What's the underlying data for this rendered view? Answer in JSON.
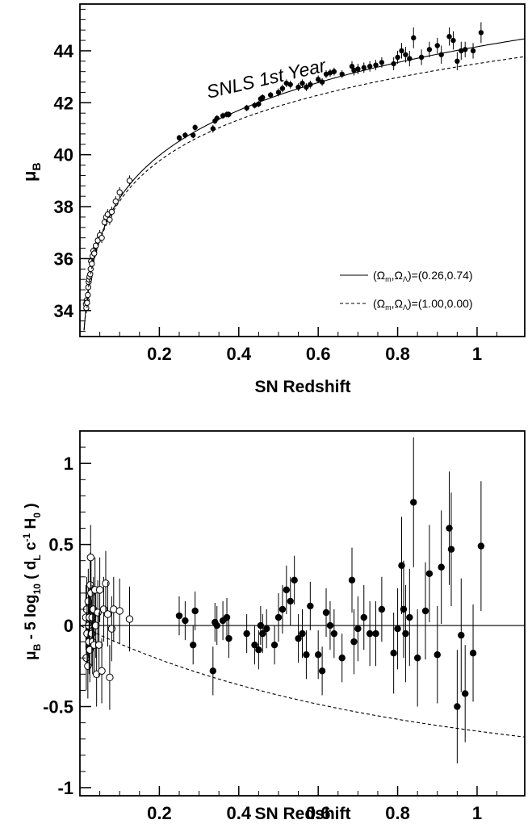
{
  "chart_data": [
    {
      "type": "scatter",
      "annotation": "SNLS 1st Year",
      "xlabel": "SN Redshift",
      "ylabel_main": "μ",
      "ylabel_sub": "B",
      "xlim": [
        0,
        1.12
      ],
      "ylim": [
        33,
        45.8
      ],
      "xticks": [
        0.2,
        0.4,
        0.6,
        0.8,
        1
      ],
      "xtick_labels": [
        "0.2",
        "0.4",
        "0.6",
        "0.8",
        "1"
      ],
      "yticks": [
        34,
        36,
        38,
        40,
        42,
        44
      ],
      "ytick_labels": [
        "34",
        "36",
        "38",
        "40",
        "42",
        "44"
      ],
      "legend": [
        {
          "text": "(Ωm,ΩΛ)=(0.26,0.74)",
          "style": "solid"
        },
        {
          "text": "(Ωm,ΩΛ)=(1.00,0.00)",
          "style": "dashed"
        }
      ],
      "series": [
        {
          "name": "(Ωm,ΩΛ)=(0.26,0.74)",
          "kind": "model",
          "om": 0.26,
          "ol": 0.74,
          "style": "solid"
        },
        {
          "name": "(Ωm,ΩΛ)=(1.00,0.00)",
          "kind": "model",
          "om": 1.0,
          "ol": 0.0,
          "style": "dashed"
        },
        {
          "kind": "low-z",
          "marker": "open",
          "points": [
            [
              0.015,
              34.25,
              0.2
            ],
            [
              0.016,
              34.1,
              0.2
            ],
            [
              0.017,
              34.4,
              0.2
            ],
            [
              0.018,
              34.3,
              0.2
            ],
            [
              0.02,
              34.6,
              0.2
            ],
            [
              0.021,
              34.9,
              0.2
            ],
            [
              0.022,
              35.1,
              0.2
            ],
            [
              0.023,
              35.2,
              0.2
            ],
            [
              0.024,
              35.3,
              0.2
            ],
            [
              0.026,
              35.4,
              0.2
            ],
            [
              0.027,
              35.6,
              0.2
            ],
            [
              0.028,
              35.9,
              0.2
            ],
            [
              0.03,
              35.8,
              0.2
            ],
            [
              0.032,
              36.1,
              0.2
            ],
            [
              0.034,
              36.3,
              0.2
            ],
            [
              0.036,
              36.2,
              0.2
            ],
            [
              0.04,
              36.5,
              0.2
            ],
            [
              0.045,
              36.7,
              0.2
            ],
            [
              0.05,
              36.9,
              0.2
            ],
            [
              0.055,
              36.8,
              0.2
            ],
            [
              0.062,
              37.4,
              0.2
            ],
            [
              0.066,
              37.6,
              0.2
            ],
            [
              0.07,
              37.7,
              0.2
            ],
            [
              0.075,
              37.5,
              0.2
            ],
            [
              0.08,
              37.8,
              0.2
            ],
            [
              0.09,
              38.2,
              0.2
            ],
            [
              0.1,
              38.55,
              0.2
            ],
            [
              0.125,
              39.0,
              0.2
            ]
          ]
        },
        {
          "kind": "SNLS",
          "marker": "filled",
          "points": [
            [
              0.25,
              40.65,
              0.12
            ],
            [
              0.265,
              40.75,
              0.12
            ],
            [
              0.285,
              40.75,
              0.12
            ],
            [
              0.29,
              41.05,
              0.12
            ],
            [
              0.335,
              41.0,
              0.15
            ],
            [
              0.34,
              41.3,
              0.12
            ],
            [
              0.345,
              41.4,
              0.12
            ],
            [
              0.36,
              41.5,
              0.12
            ],
            [
              0.37,
              41.55,
              0.12
            ],
            [
              0.375,
              41.55,
              0.12
            ],
            [
              0.42,
              41.8,
              0.12
            ],
            [
              0.44,
              41.9,
              0.12
            ],
            [
              0.45,
              41.95,
              0.12
            ],
            [
              0.455,
              42.15,
              0.12
            ],
            [
              0.46,
              42.2,
              0.12
            ],
            [
              0.48,
              42.3,
              0.12
            ],
            [
              0.5,
              42.4,
              0.15
            ],
            [
              0.51,
              42.55,
              0.15
            ],
            [
              0.52,
              42.75,
              0.15
            ],
            [
              0.53,
              42.7,
              0.15
            ],
            [
              0.55,
              42.6,
              0.15
            ],
            [
              0.56,
              42.75,
              0.15
            ],
            [
              0.57,
              42.6,
              0.15
            ],
            [
              0.58,
              42.7,
              0.15
            ],
            [
              0.6,
              42.9,
              0.15
            ],
            [
              0.61,
              42.8,
              0.15
            ],
            [
              0.62,
              43.1,
              0.15
            ],
            [
              0.63,
              43.15,
              0.15
            ],
            [
              0.64,
              43.2,
              0.15
            ],
            [
              0.66,
              43.1,
              0.15
            ],
            [
              0.685,
              43.4,
              0.2
            ],
            [
              0.69,
              43.25,
              0.2
            ],
            [
              0.7,
              43.3,
              0.2
            ],
            [
              0.715,
              43.35,
              0.2
            ],
            [
              0.73,
              43.4,
              0.2
            ],
            [
              0.745,
              43.45,
              0.2
            ],
            [
              0.76,
              43.55,
              0.2
            ],
            [
              0.79,
              43.5,
              0.25
            ],
            [
              0.8,
              43.75,
              0.25
            ],
            [
              0.81,
              44.0,
              0.3
            ],
            [
              0.82,
              43.85,
              0.3
            ],
            [
              0.83,
              43.7,
              0.3
            ],
            [
              0.84,
              44.5,
              0.4
            ],
            [
              0.86,
              43.75,
              0.3
            ],
            [
              0.88,
              44.05,
              0.3
            ],
            [
              0.9,
              44.2,
              0.3
            ],
            [
              0.91,
              43.85,
              0.35
            ],
            [
              0.93,
              44.55,
              0.35
            ],
            [
              0.94,
              44.4,
              0.35
            ],
            [
              0.95,
              43.6,
              0.35
            ],
            [
              0.96,
              44.0,
              0.35
            ],
            [
              0.97,
              44.05,
              0.3
            ],
            [
              0.99,
              44.0,
              0.3
            ],
            [
              1.01,
              44.7,
              0.4
            ]
          ]
        }
      ]
    },
    {
      "type": "scatter",
      "xlabel": "SN Redshift",
      "ylabel": "μB - 5 log10 ( dL c-1 H0 )",
      "ylabel_parts": [
        "μ",
        "B",
        " - 5 log",
        "10",
        " ( d",
        "L",
        " c",
        "-1",
        " H",
        "0",
        " )"
      ],
      "xlim": [
        0,
        1.12
      ],
      "ylim": [
        -1.05,
        1.2
      ],
      "xticks": [
        0.2,
        0.4,
        0.6,
        0.8,
        1
      ],
      "xtick_labels": [
        "0.2",
        "0.4",
        "0.6",
        "0.8",
        "1"
      ],
      "yticks": [
        -1,
        -0.5,
        0,
        0.5,
        1
      ],
      "ytick_labels": [
        "-1",
        "-0.5",
        "0",
        "0.5",
        "1"
      ],
      "series": [
        {
          "kind": "model-residual",
          "style": "solid",
          "om": 0.26,
          "ol": 0.74
        },
        {
          "kind": "model-residual",
          "style": "dashed",
          "om": 1.0,
          "ol": 0.0
        },
        {
          "kind": "low-z",
          "marker": "open",
          "points": [
            [
              0.015,
              0.05,
              0.2
            ],
            [
              0.016,
              -0.2,
              0.2
            ],
            [
              0.017,
              0.1,
              0.2
            ],
            [
              0.018,
              -0.05,
              0.2
            ],
            [
              0.02,
              -0.25,
              0.2
            ],
            [
              0.021,
              0.15,
              0.2
            ],
            [
              0.022,
              0.0,
              0.2
            ],
            [
              0.023,
              -0.1,
              0.2
            ],
            [
              0.024,
              0.05,
              0.2
            ],
            [
              0.025,
              -0.15,
              0.2
            ],
            [
              0.026,
              0.25,
              0.2
            ],
            [
              0.027,
              0.42,
              0.2
            ],
            [
              0.028,
              0.2,
              0.2
            ],
            [
              0.03,
              -0.05,
              0.2
            ],
            [
              0.031,
              0.05,
              0.2
            ],
            [
              0.032,
              -0.1,
              0.2
            ],
            [
              0.034,
              0.1,
              0.2
            ],
            [
              0.036,
              -0.12,
              0.2
            ],
            [
              0.038,
              0.22,
              0.2
            ],
            [
              0.04,
              0.0,
              0.2
            ],
            [
              0.042,
              -0.3,
              0.2
            ],
            [
              0.045,
              0.08,
              0.2
            ],
            [
              0.048,
              -0.12,
              0.2
            ],
            [
              0.05,
              0.22,
              0.2
            ],
            [
              0.055,
              -0.28,
              0.2
            ],
            [
              0.06,
              0.1,
              0.2
            ],
            [
              0.065,
              0.26,
              0.2
            ],
            [
              0.07,
              0.07,
              0.2
            ],
            [
              0.075,
              -0.32,
              0.2
            ],
            [
              0.08,
              -0.02,
              0.2
            ],
            [
              0.085,
              0.1,
              0.2
            ],
            [
              0.1,
              0.09,
              0.2
            ],
            [
              0.125,
              0.04,
              0.2
            ]
          ]
        },
        {
          "kind": "SNLS",
          "marker": "filled",
          "points": [
            [
              0.25,
              0.06,
              0.12
            ],
            [
              0.265,
              0.03,
              0.12
            ],
            [
              0.285,
              -0.12,
              0.12
            ],
            [
              0.29,
              0.09,
              0.12
            ],
            [
              0.335,
              -0.28,
              0.15
            ],
            [
              0.34,
              0.02,
              0.12
            ],
            [
              0.345,
              0.0,
              0.12
            ],
            [
              0.36,
              0.03,
              0.12
            ],
            [
              0.37,
              0.05,
              0.12
            ],
            [
              0.375,
              -0.08,
              0.12
            ],
            [
              0.42,
              -0.05,
              0.12
            ],
            [
              0.44,
              -0.12,
              0.12
            ],
            [
              0.45,
              -0.15,
              0.12
            ],
            [
              0.455,
              0.0,
              0.12
            ],
            [
              0.46,
              -0.05,
              0.12
            ],
            [
              0.47,
              -0.02,
              0.12
            ],
            [
              0.49,
              -0.12,
              0.12
            ],
            [
              0.5,
              0.05,
              0.15
            ],
            [
              0.51,
              0.1,
              0.15
            ],
            [
              0.52,
              0.22,
              0.15
            ],
            [
              0.53,
              0.15,
              0.15
            ],
            [
              0.54,
              0.28,
              0.15
            ],
            [
              0.55,
              -0.08,
              0.15
            ],
            [
              0.56,
              -0.05,
              0.15
            ],
            [
              0.57,
              -0.18,
              0.15
            ],
            [
              0.58,
              0.12,
              0.15
            ],
            [
              0.6,
              -0.18,
              0.15
            ],
            [
              0.61,
              -0.28,
              0.15
            ],
            [
              0.62,
              0.08,
              0.15
            ],
            [
              0.63,
              0.0,
              0.15
            ],
            [
              0.64,
              -0.05,
              0.15
            ],
            [
              0.66,
              -0.2,
              0.15
            ],
            [
              0.685,
              0.28,
              0.2
            ],
            [
              0.69,
              -0.1,
              0.2
            ],
            [
              0.7,
              -0.02,
              0.2
            ],
            [
              0.715,
              0.05,
              0.2
            ],
            [
              0.73,
              -0.05,
              0.2
            ],
            [
              0.745,
              -0.05,
              0.2
            ],
            [
              0.76,
              0.1,
              0.2
            ],
            [
              0.79,
              -0.17,
              0.25
            ],
            [
              0.8,
              -0.02,
              0.25
            ],
            [
              0.81,
              0.37,
              0.3
            ],
            [
              0.815,
              0.1,
              0.3
            ],
            [
              0.82,
              -0.05,
              0.3
            ],
            [
              0.83,
              0.05,
              0.3
            ],
            [
              0.84,
              0.76,
              0.4
            ],
            [
              0.85,
              -0.2,
              0.3
            ],
            [
              0.87,
              0.09,
              0.3
            ],
            [
              0.88,
              0.32,
              0.3
            ],
            [
              0.9,
              -0.18,
              0.3
            ],
            [
              0.91,
              0.36,
              0.35
            ],
            [
              0.93,
              0.6,
              0.35
            ],
            [
              0.935,
              0.47,
              0.35
            ],
            [
              0.95,
              -0.5,
              0.35
            ],
            [
              0.96,
              -0.06,
              0.35
            ],
            [
              0.97,
              -0.42,
              0.3
            ],
            [
              0.99,
              -0.17,
              0.3
            ],
            [
              1.01,
              0.49,
              0.4
            ]
          ]
        }
      ]
    }
  ]
}
